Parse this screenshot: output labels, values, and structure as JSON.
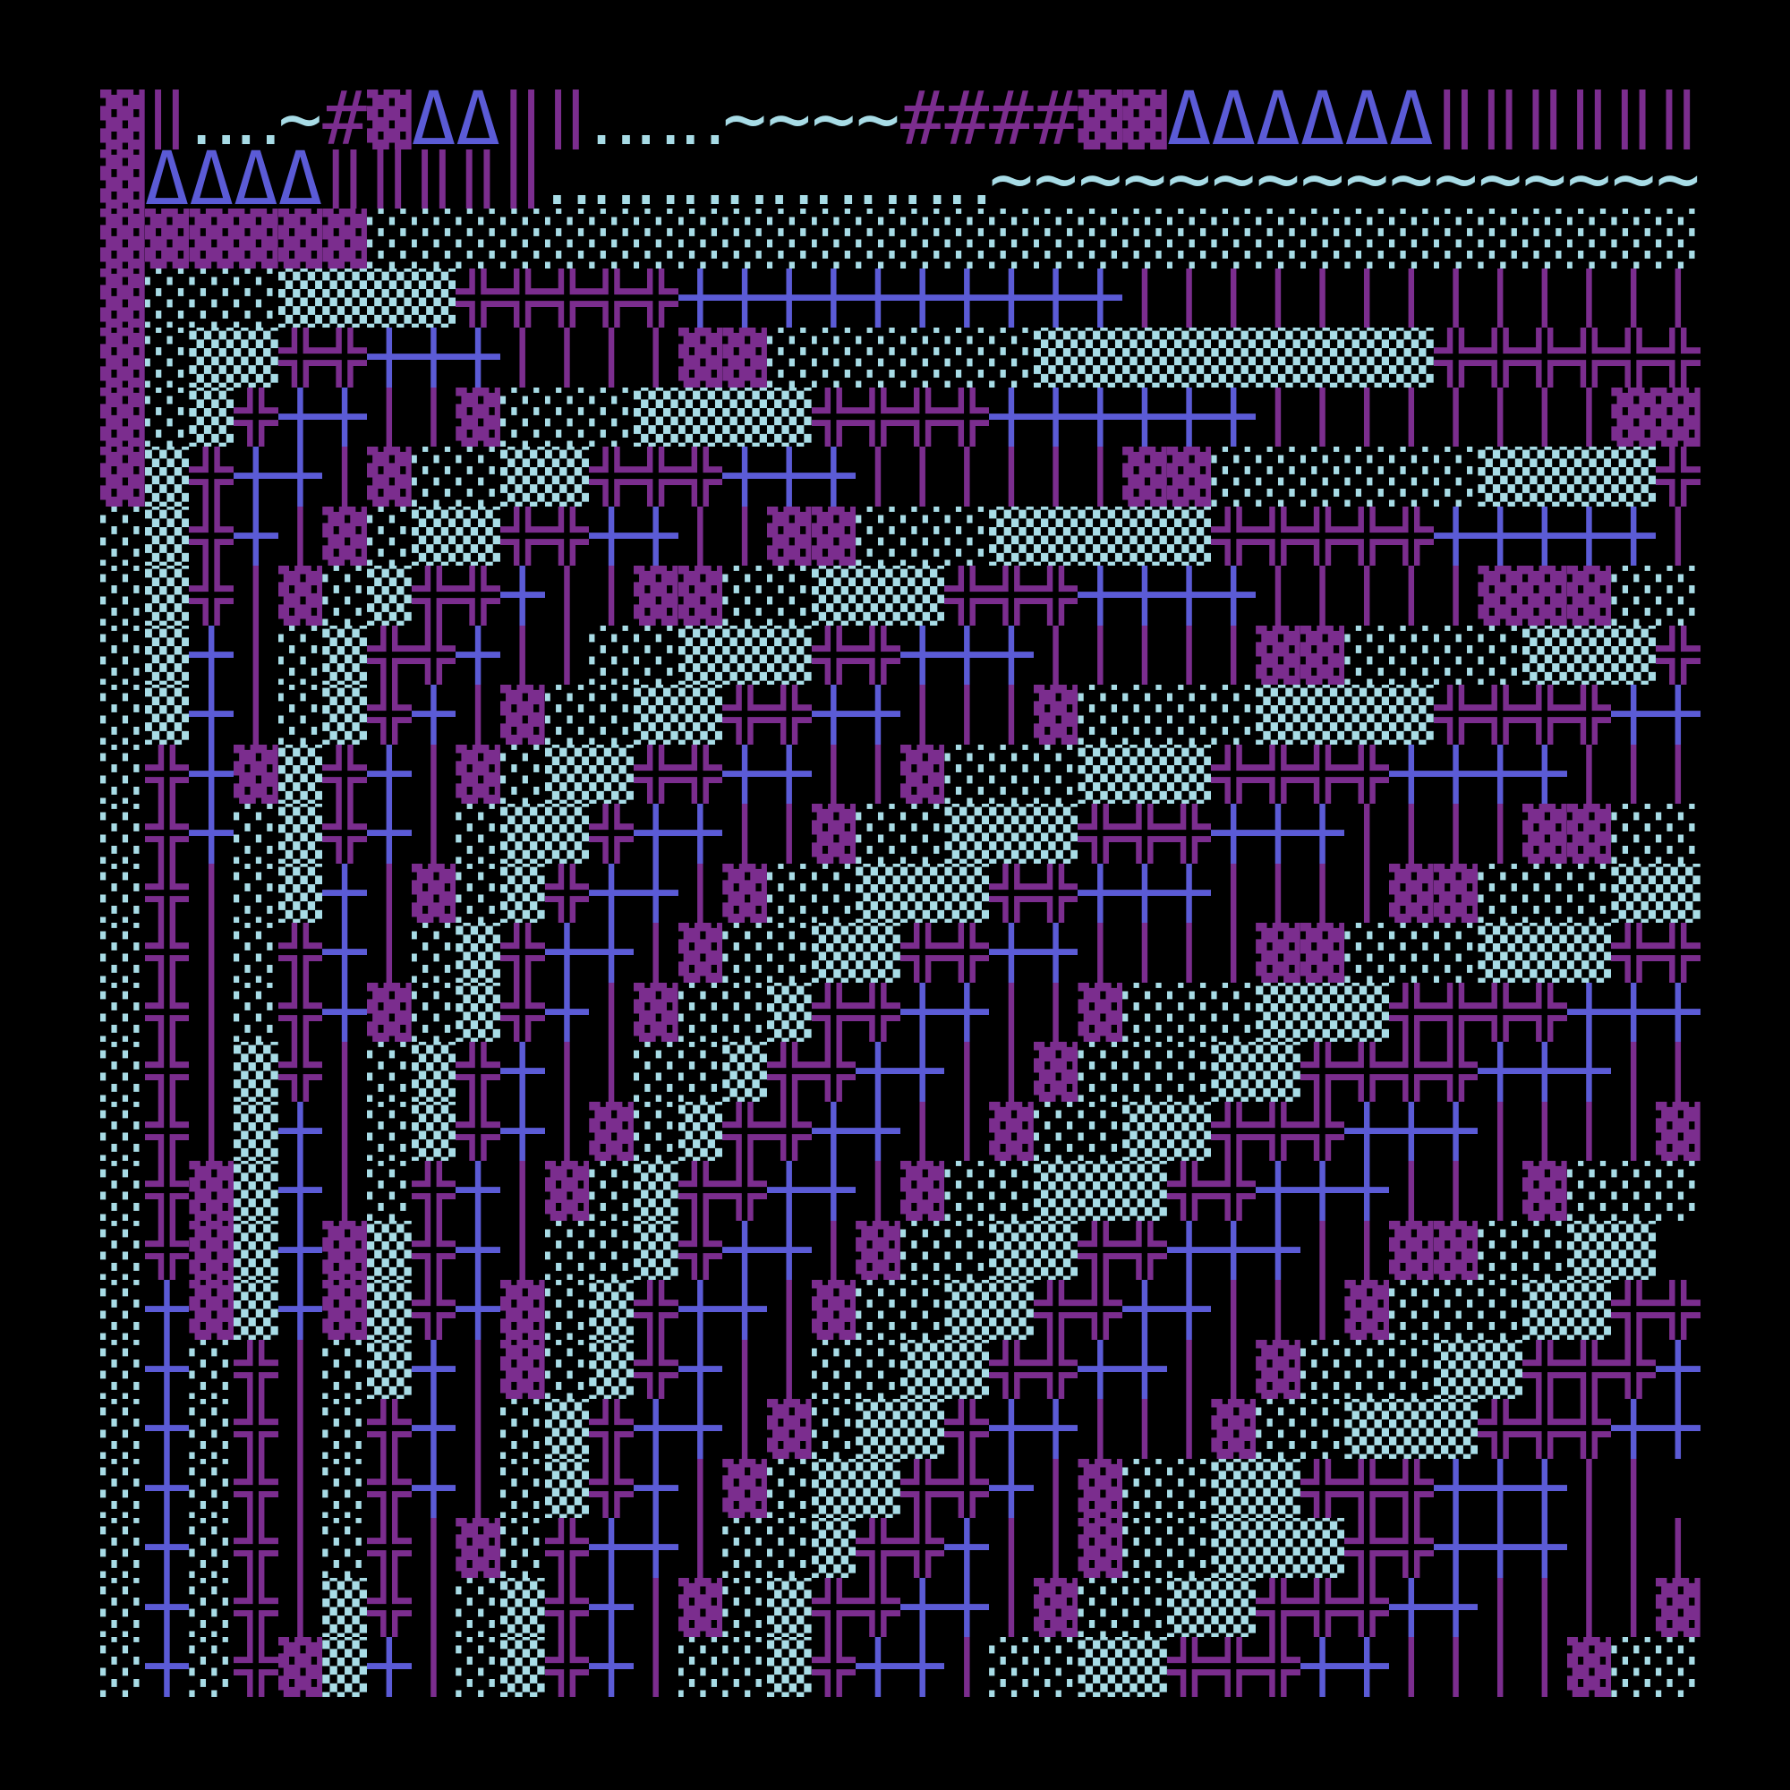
{
  "palette": {
    "background": "#000000",
    "purple": "#7b2d8e",
    "blue": "#5b5bd6",
    "cyan": "#a8dce6"
  },
  "rows": [
    "▓‖‥‥~#▓ΔΔ‖‖‥‥‥~~~~####▓▓ΔΔΔΔΔΔ‖‖‖‖‖‖",
    "▓ΔΔΔΔ‖‖‖‖‖‥‥‥‥‥‥‥‥‥‥~~~~~~~~~~~~~~~~",
    "▓▓▓▓▓▓░░░░░░░░░░░░░░░░░░░░░░░░░░░░░░",
    "▓░░░▒▒▒▒╬╬╬╬╬┼┼┼┼┼┼┼┼┼┼│││││││││││││",
    "▓░▒▒╬╬┼┼┼││││▓▓░░░░░░▒▒▒▒▒▒▒▒▒╬╬╬╬╬╬",
    "▓░▒╬┼┼││▓░░░▒▒▒▒╬╬╬╬┼┼┼┼┼┼││││││││▓▓",
    "▓▒╬┼┼│▓░░▒▒╬╬╬┼┼┼││││││▓▓░░░░░░▒▒▒▒╬",
    "░▒╬┼│▓░▒▒╬╬┼┼││▓▓░░░▒▒▒▒▒╬╬╬╬╬┼┼┼┼┼│",
    "░▒╬│▓░▒╬╬┼││▓▓░░▒▒▒╬╬╬┼┼┼┼│││││▓▓▓░░",
    "░▒┼│░▒╬╬┼││░░▒▒▒╬╬┼┼┼│││││▓▓░░░░▒▒▒╬",
    "░▒┼│░▒╬┼│▓░░▒▒╬╬┼┼│││▓░░░░▒▒▒▒╬╬╬╬┼┼",
    "░╬┼▓▒╬┼│▓░▒▒╬╬┼┼││▓░░░▒▒▒╬╬╬╬┼┼┼┼│││",
    "░╬┼░▒╬┼│░▒▒╬┼┼││▓░░▒▒▒╬╬╬┼┼┼││││▓▓░░░",
    "░╬│░▒┼│▓░▒╬┼┼│▓░░▒▒▒╬╬┼┼┼││││▓▓░░░▒▒",
    "░╬│░╬┼│░▒╬┼┼│▓░░▒▒╬╬┼┼││││▓▓░░░▒▒▒╬╬╬",
    "░╬│░╬┼▓░▒╬┼│▓░░▒╬╬┼┼││▓░░░▒▒▒╬╬╬╬┼┼┼",
    "░╬│▒╬│░▒╬┼││░░▒╬╬┼┼││▓░░░▒▒╬╬╬╬┼┼┼││",
    "░╬│▒┼│░▒╬┼│▓░▒╬╬┼┼││▓░░▒▒╬╬╬┼┼┼││││▓▓",
    "░╬▓▒┼│░╬┼│▓░▒╬╬┼┼│▓░░▒▒▒╬╬┼┼┼│││▓░░░",
    "░╬▓▒┼▓▒╬┼│░░▒╬┼┼│▓░░▒▒╬╬┼┼┼││▓▓░░▒▒",
    "░┼▓▒┼▓▒╬┼▓░▒╬┼┼│▓░░▒▒╬╬┼┼│││▓░░░▒▒╬╬",
    "░┼░╬│░▒┼│▓░▒╬┼││░░▒▒╬╬┼┼││▓░░░▒▒╬╬╬┼",
    "░┼░╬│░╬┼│░▒╬┼┼│▓░▒▒╬┼┼│││▓░░▒▒▒╬╬╬┼┼",
    "░┼░╬│░╬┼│░▒╬┼│▓░▒▒╬╬┼│▓░░▒▒╬╬╬┼┼┼││",
    "░┼░╬│░╬│▓░╬┼┼│░░▒╬╬┼││▓░░▒▒▒╬╬┼┼┼│││",
    "░┼░╬│▒╬│░▒╬┼│▓░▒╬╬┼┼│▓░░▒▒╬╬╬┼┼││││▓▓",
    "░┼░╬▓▒┼│░▒╬┼│░░▒╬┼┼│░░▒▒╬╬╬┼┼││││▓░░"
  ]
}
